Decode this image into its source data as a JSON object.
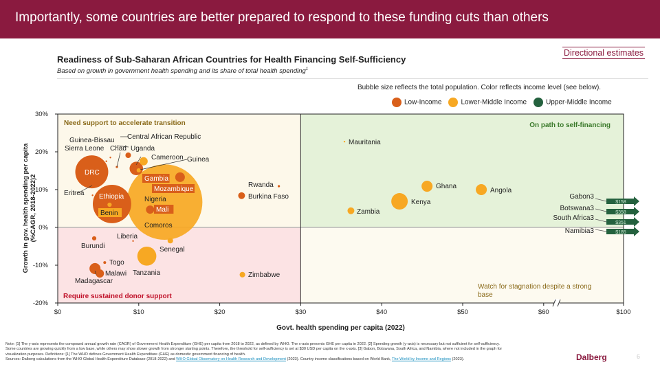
{
  "header": {
    "title": "Importantly, some countries are better prepared to respond to these funding cuts than others"
  },
  "badge": "Directional estimates",
  "chart_data": {
    "type": "scatter",
    "title": "Readiness of Sub-Saharan African Countries for Health Financing Self-Sufficiency",
    "subtitle": "Based on growth in government health spending and its share of total health spending",
    "subtitle_sup": "1",
    "bubble_note": "Bubble size reflects the total population. Color reflects income level (see below).",
    "xlabel": "Govt. health spending per capita (2022)",
    "ylabel": "Growth in gov. health spending per capita (%CAGR, 2018-2022)",
    "ylabel_sup": "2",
    "xlim": [
      0,
      100
    ],
    "ylim": [
      -20,
      30
    ],
    "x_axis_break": [
      60,
      100
    ],
    "xticks": [
      {
        "v": 0,
        "label": "$0"
      },
      {
        "v": 10,
        "label": "$10"
      },
      {
        "v": 20,
        "label": "$20"
      },
      {
        "v": 30,
        "label": "$30"
      },
      {
        "v": 40,
        "label": "$40"
      },
      {
        "v": 50,
        "label": "$50"
      },
      {
        "v": 60,
        "label": "$60"
      },
      {
        "v": 100,
        "label": "$100"
      }
    ],
    "yticks": [
      {
        "v": 30,
        "label": "30%"
      },
      {
        "v": 20,
        "label": "20%"
      },
      {
        "v": 10,
        "label": "10%"
      },
      {
        "v": 0,
        "label": "0%"
      },
      {
        "v": -10,
        "label": "-10%"
      },
      {
        "v": -20,
        "label": "-20%"
      }
    ],
    "threshold_x": 30,
    "legend": [
      {
        "name": "Low-Income",
        "color": "#d95f1a"
      },
      {
        "name": "Lower-Middle Income",
        "color": "#f7a823"
      },
      {
        "name": "Upper-Middle Income",
        "color": "#24613e"
      }
    ],
    "quadrants": {
      "top_left": "Need support to accelerate transition",
      "top_right": "On path to self-financing",
      "bottom_left": "Require sustained donor support",
      "bottom_right": "Watch for stagnation despite a strong base"
    },
    "quadrant_colors": {
      "top_left": "#fdf8ea",
      "top_right": "#e5f2d9",
      "bottom_left": "#fce3e4",
      "bottom_right": "#fdfaf0"
    },
    "points": [
      {
        "name": "Nigeria",
        "x": 13.2,
        "y": 6.7,
        "pop": 220,
        "income": "Lower-Middle Income"
      },
      {
        "name": "Ethiopia",
        "x": 6.7,
        "y": 6.2,
        "pop": 57,
        "income": "Low-Income"
      },
      {
        "name": "DRC",
        "x": 4.2,
        "y": 14.7,
        "pop": 42,
        "income": "Low-Income"
      },
      {
        "name": "Tanzania",
        "x": 11.0,
        "y": -7.6,
        "pop": 14,
        "income": "Lower-Middle Income"
      },
      {
        "name": "Kenya",
        "x": 42.2,
        "y": 6.9,
        "pop": 10.5,
        "income": "Lower-Middle Income"
      },
      {
        "name": "Uganda",
        "x": 9.7,
        "y": 15.6,
        "pop": 7,
        "income": "Low-Income"
      },
      {
        "name": "Ghana",
        "x": 45.6,
        "y": 10.9,
        "pop": 4.7,
        "income": "Lower-Middle Income"
      },
      {
        "name": "Angola",
        "x": 52.3,
        "y": 10.0,
        "pop": 4.7,
        "income": "Lower-Middle Income"
      },
      {
        "name": "Madagascar",
        "x": 4.6,
        "y": -10.9,
        "pop": 4.7,
        "income": "Low-Income"
      },
      {
        "name": "Mozambique",
        "x": 15.1,
        "y": 13.3,
        "pop": 3.6,
        "income": "Low-Income"
      },
      {
        "name": "Cameroon",
        "x": 10.6,
        "y": 17.5,
        "pop": 2.6,
        "income": "Lower-Middle Income"
      },
      {
        "name": "Mali",
        "x": 11.4,
        "y": 4.7,
        "pop": 2.6,
        "income": "Low-Income"
      },
      {
        "name": "Malawi",
        "x": 5.2,
        "y": -12.2,
        "pop": 2.6,
        "income": "Low-Income"
      },
      {
        "name": "Zambia",
        "x": 36.2,
        "y": 4.4,
        "pop": 1.8,
        "income": "Lower-Middle Income"
      },
      {
        "name": "Burkina Faso",
        "x": 22.7,
        "y": 8.4,
        "pop": 1.8,
        "income": "Low-Income"
      },
      {
        "name": "Senegal",
        "x": 13.9,
        "y": -3.5,
        "pop": 1.2,
        "income": "Lower-Middle Income"
      },
      {
        "name": "Zimbabwe",
        "x": 22.8,
        "y": -12.5,
        "pop": 1.2,
        "income": "Lower-Middle Income"
      },
      {
        "name": "Central African Republic",
        "x": 8.7,
        "y": 19.1,
        "pop": 1.2,
        "income": "Low-Income"
      },
      {
        "name": "Guinea",
        "x": 10.0,
        "y": 15.1,
        "pop": 0.7,
        "income": "Lower-Middle Income"
      },
      {
        "name": "Benin",
        "x": 6.4,
        "y": 6.0,
        "pop": 0.7,
        "income": "Lower-Middle Income"
      },
      {
        "name": "Burundi",
        "x": 4.5,
        "y": -2.9,
        "pop": 0.7,
        "income": "Low-Income"
      },
      {
        "name": "Gambia",
        "x": 12.0,
        "y": 13.3,
        "pop": 0.3,
        "income": "Low-Income"
      },
      {
        "name": "Togo",
        "x": 5.8,
        "y": -9.3,
        "pop": 0.3,
        "income": "Low-Income"
      },
      {
        "name": "Chad",
        "x": 7.3,
        "y": 16.0,
        "pop": 0.2,
        "income": "Low-Income"
      },
      {
        "name": "Rwanda",
        "x": 27.3,
        "y": 10.9,
        "pop": 0.2,
        "income": "Low-Income"
      },
      {
        "name": "Liberia",
        "x": 9.3,
        "y": -3.6,
        "pop": 0.1,
        "income": "Low-Income"
      },
      {
        "name": "Comoros",
        "x": 13.5,
        "y": 1.0,
        "pop": 0.1,
        "income": "Lower-Middle Income"
      },
      {
        "name": "Eritrea",
        "x": 4.3,
        "y": 8.5,
        "pop": 0.1,
        "income": "Low-Income"
      },
      {
        "name": "Sierra Leone",
        "x": 6.0,
        "y": 17.5,
        "pop": 0.1,
        "income": "Low-Income"
      },
      {
        "name": "Guinea-Bissau",
        "x": 6.5,
        "y": 18.5,
        "pop": 0.05,
        "income": "Low-Income"
      },
      {
        "name": "Mauritania",
        "x": 35.4,
        "y": 22.7,
        "pop": 0.05,
        "income": "Lower-Middle Income"
      }
    ],
    "off_chart": [
      {
        "name": "Gabon",
        "sup": "3",
        "value": "$158"
      },
      {
        "name": "Botswana",
        "sup": "3",
        "value": "$358"
      },
      {
        "name": "South Africa",
        "sup": "3",
        "value": "$351"
      },
      {
        "name": "Namibia",
        "sup": "3",
        "value": "$185"
      }
    ]
  },
  "notes": {
    "line1": "Note: [1] The y-axis represents the compound annual growth rate (CAGR) of Government Health Expenditure (GHE) per capita from 2018 to 2022, as defined by WHO. The x-axis presents GHE per capita in 2022. [2] Spending growth (y-axis) is necessary but not sufficient for self-sufficiency.",
    "line2": "Some countries are growing quickly from a low base, while others may show slower growth from stronger starting points. Therefore, the threshold for self-sufficiency is set at $30 USD per capita on the x-axis.  [3] Gabon, Botswana, South Africa, and Namibia, where not included in the graph for",
    "line3": "visualization purposes. Definitions: [1] The WHO defines Government Health Expenditure (GHE) as domestic government financing of health.",
    "sources_pre": "Sources: Dalberg calculations from the WHO Global Health Expenditure Database (2018-2022) and ",
    "link1": "WHO Global Observatory on Health Research and Development",
    "sources_mid": " (2023). Country income classifications based on World Bank, ",
    "link2": "The World by Income and Regions",
    "sources_post": " (2023)."
  },
  "footer": {
    "logo": "Dalberg",
    "page": "6"
  }
}
